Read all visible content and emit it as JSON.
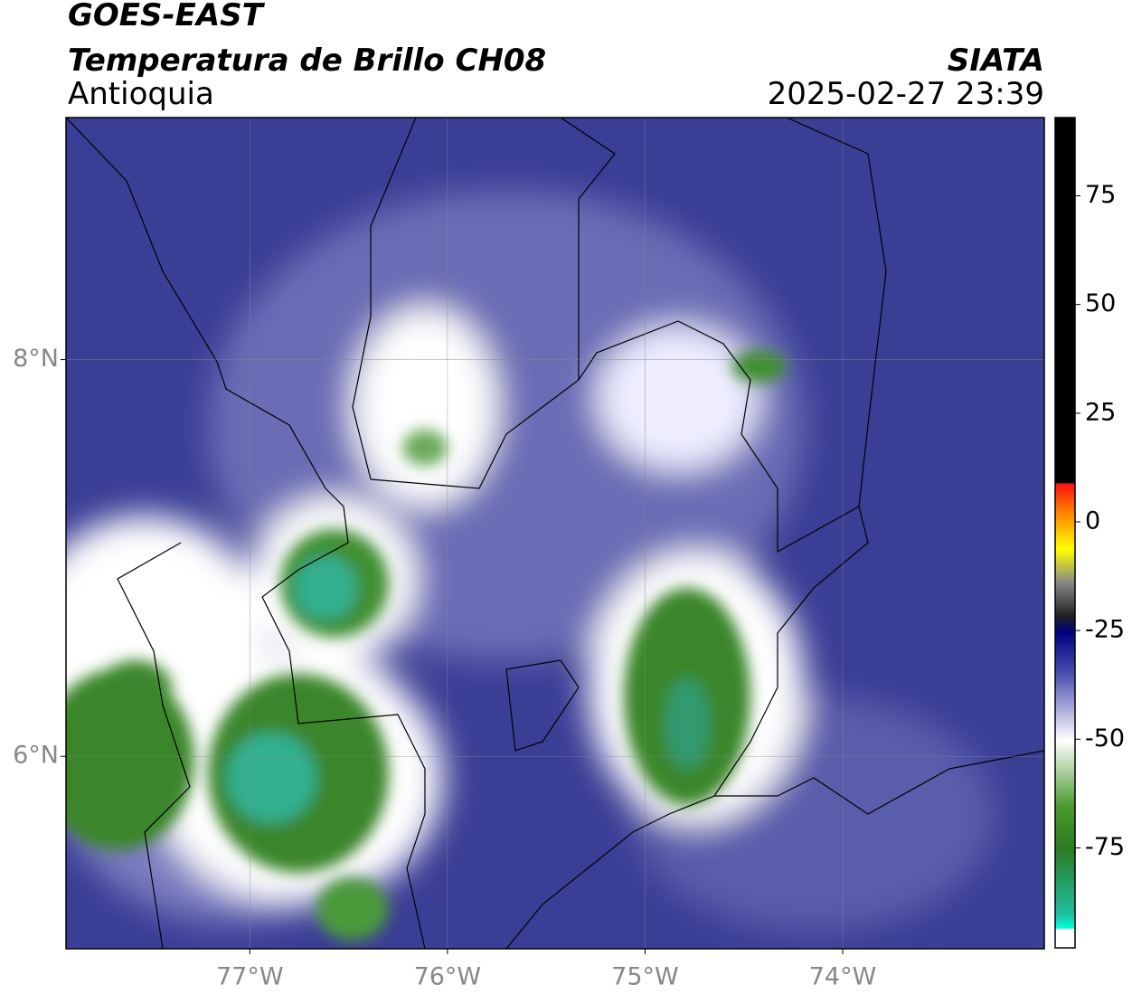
{
  "header": {
    "title": "GOES-EAST",
    "subtitle": "Temperatura de Brillo CH08",
    "region": "Antioquia",
    "source": "SIATA",
    "timestamp": "2025-02-27 23:39"
  },
  "map": {
    "lonlim": [
      -77.93,
      -72.98
    ],
    "latlim": [
      5.03,
      9.22
    ],
    "xticks": [
      {
        "value": -77,
        "label": "77°W"
      },
      {
        "value": -76,
        "label": "76°W"
      },
      {
        "value": -75,
        "label": "75°W"
      },
      {
        "value": -74,
        "label": "74°W"
      }
    ],
    "yticks": [
      {
        "value": 8,
        "label": "8°N"
      },
      {
        "value": 6,
        "label": "6°N"
      }
    ],
    "grid": true
  },
  "colorbar": {
    "lim": [
      -98,
      93
    ],
    "ticks": [
      75,
      50,
      25,
      0,
      -25,
      -50,
      -75
    ]
  }
}
